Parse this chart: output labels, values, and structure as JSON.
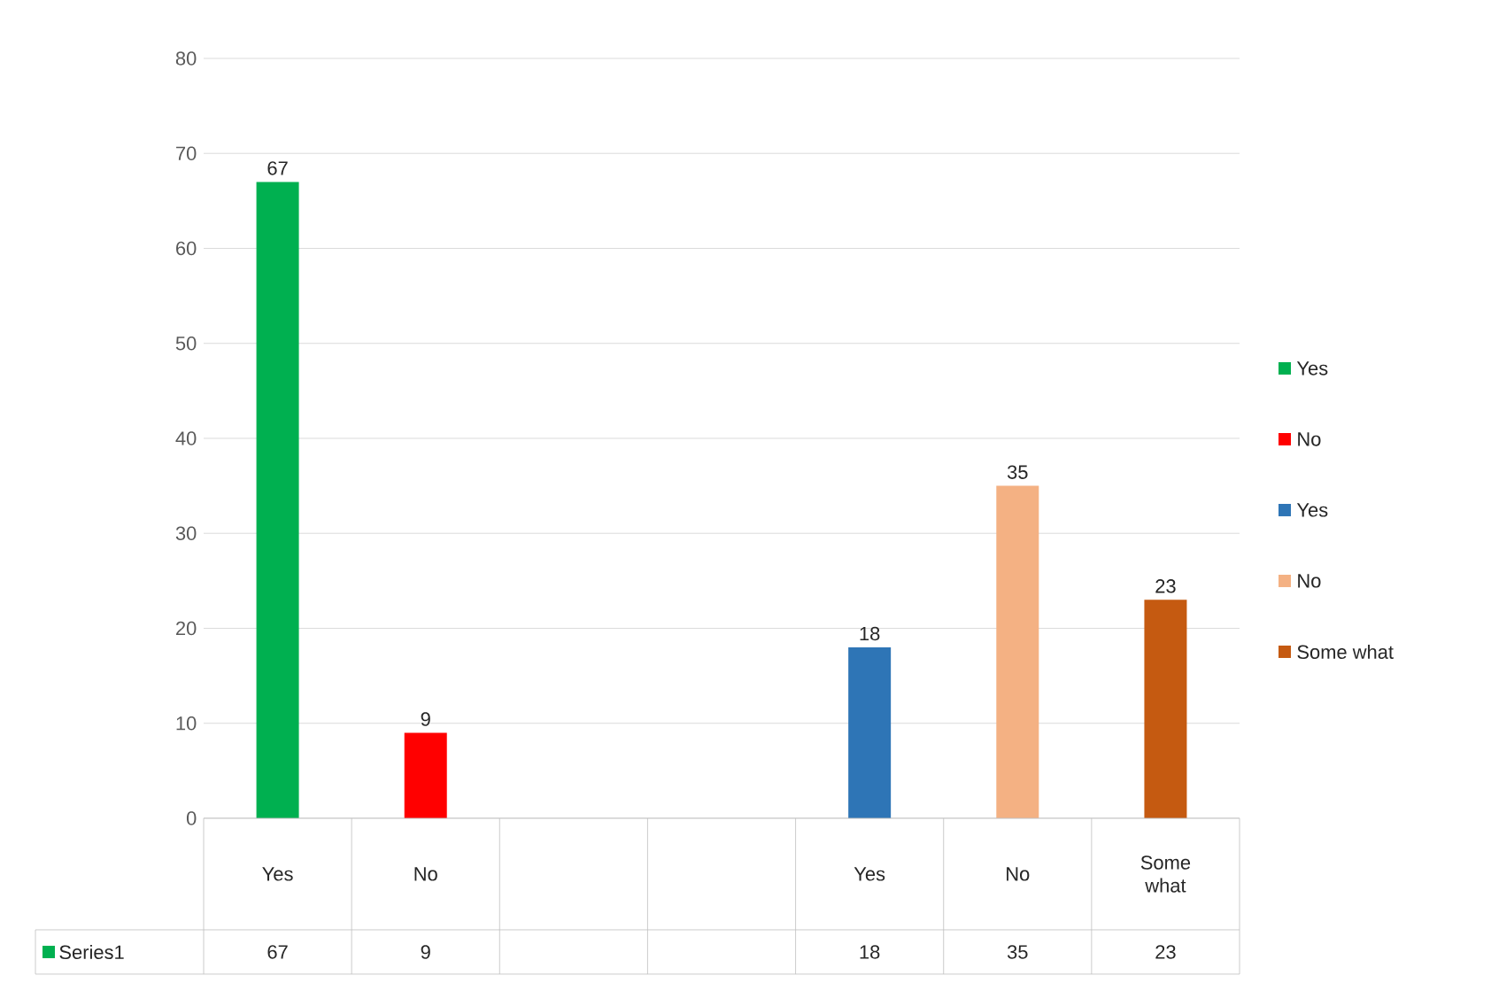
{
  "chart_data": {
    "type": "bar",
    "categories": [
      "Yes",
      "No",
      null,
      null,
      "Yes",
      "No",
      "Some what"
    ],
    "series": [
      {
        "name": "Series1",
        "colors": [
          "#00b050",
          "#ff0000",
          null,
          null,
          "#2e75b6",
          "#f4b183",
          "#c55a11"
        ],
        "values": [
          67,
          9,
          null,
          null,
          18,
          35,
          23
        ],
        "value_labels": [
          "67",
          "9",
          null,
          null,
          "18",
          "35",
          "23"
        ]
      }
    ],
    "ylim": [
      0,
      80
    ],
    "yticks": [
      0,
      10,
      20,
      30,
      40,
      50,
      60,
      70,
      80
    ],
    "grid": "y",
    "legend": "bottom left"
  }
}
